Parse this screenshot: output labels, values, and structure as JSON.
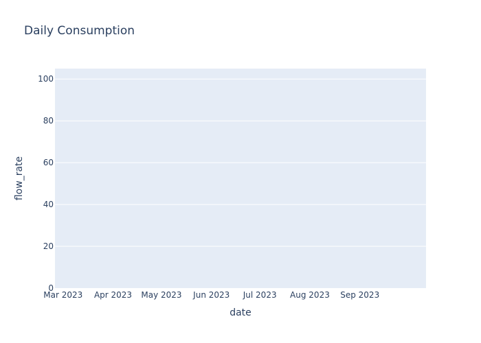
{
  "chart_data": {
    "type": "area",
    "title": "Daily Consumption",
    "xlabel": "date",
    "ylabel": "flow_rate",
    "x_range": [
      "2023-03-01",
      "2023-09-30"
    ],
    "ylim": [
      0,
      105
    ],
    "x_ticks": [
      {
        "date": "2023-03-01",
        "label": "Mar 2023"
      },
      {
        "date": "2023-04-01",
        "label": "Apr 2023"
      },
      {
        "date": "2023-05-01",
        "label": "May 2023"
      },
      {
        "date": "2023-06-01",
        "label": "Jun 2023"
      },
      {
        "date": "2023-07-01",
        "label": "Jul 2023"
      },
      {
        "date": "2023-08-01",
        "label": "Aug 2023"
      },
      {
        "date": "2023-09-01",
        "label": "Sep 2023"
      }
    ],
    "y_ticks": [
      0,
      20,
      40,
      60,
      80,
      100
    ],
    "grid": true,
    "legend": "none",
    "series": [
      {
        "x": [],
        "y": []
      }
    ],
    "colors": {
      "plot_background": "#e5ecf6",
      "gridline": "#ffffff",
      "text": "#2a3f5f"
    }
  }
}
